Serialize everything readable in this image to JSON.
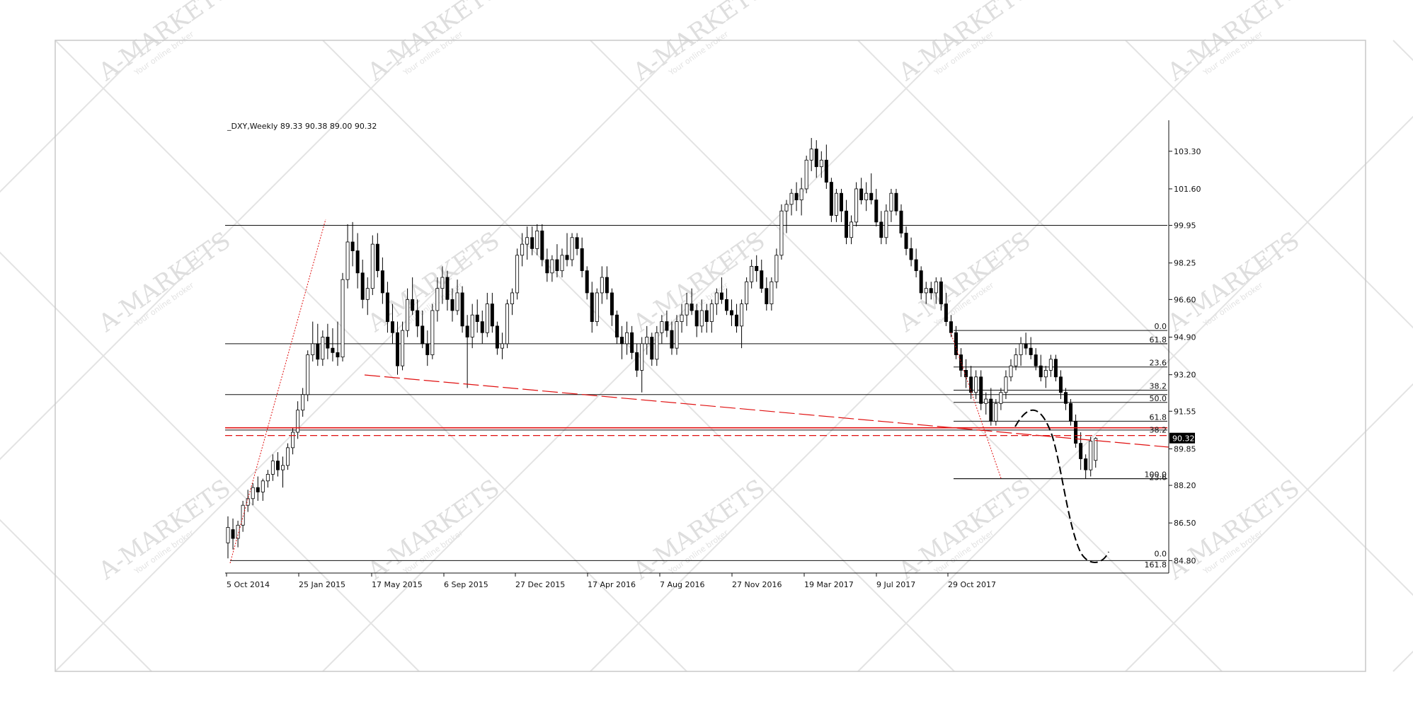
{
  "watermark": {
    "brand": "A-MARKETS",
    "tagline": "Your online broker"
  },
  "chart_data": {
    "type": "candlestick",
    "title": "_DXY,Weekly  89.33 90.38 89.00 90.32",
    "x_tick_labels": [
      "5 Oct 2014",
      "25 Jan 2015",
      "17 May 2015",
      "6 Sep 2015",
      "27 Dec 2015",
      "17 Apr 2016",
      "7 Aug 2016",
      "27 Nov 2016",
      "19 Mar 2017",
      "9 Jul 2017",
      "29 Oct 2017"
    ],
    "y_tick_labels": [
      103.3,
      101.6,
      99.95,
      98.25,
      96.6,
      94.9,
      93.2,
      91.55,
      89.85,
      88.2,
      86.5,
      84.8
    ],
    "ylim": [
      84.3,
      104.7
    ],
    "current_price": "90.32",
    "ohlc": [
      [
        85.6,
        86.8,
        84.9,
        86.3
      ],
      [
        86.2,
        86.7,
        85.3,
        85.8
      ],
      [
        85.8,
        86.6,
        85.4,
        86.4
      ],
      [
        86.4,
        87.5,
        86.1,
        87.3
      ],
      [
        87.3,
        88.0,
        87.0,
        87.6
      ],
      [
        87.6,
        88.3,
        87.3,
        88.1
      ],
      [
        88.1,
        88.6,
        87.5,
        87.9
      ],
      [
        87.9,
        88.5,
        87.5,
        88.4
      ],
      [
        88.4,
        88.9,
        88.1,
        88.7
      ],
      [
        88.7,
        89.6,
        88.4,
        89.3
      ],
      [
        89.3,
        89.7,
        88.6,
        88.9
      ],
      [
        88.9,
        89.5,
        88.1,
        89.1
      ],
      [
        89.1,
        90.1,
        88.9,
        89.9
      ],
      [
        89.9,
        90.8,
        89.6,
        90.6
      ],
      [
        90.6,
        92.0,
        90.3,
        91.6
      ],
      [
        91.6,
        92.6,
        91.3,
        92.3
      ],
      [
        92.3,
        94.3,
        92.0,
        94.1
      ],
      [
        94.1,
        95.6,
        93.8,
        94.6
      ],
      [
        94.6,
        95.5,
        93.6,
        93.9
      ],
      [
        93.9,
        95.2,
        93.6,
        94.9
      ],
      [
        94.9,
        95.5,
        93.9,
        94.4
      ],
      [
        94.4,
        95.3,
        93.8,
        94.2
      ],
      [
        94.2,
        95.6,
        93.6,
        94.0
      ],
      [
        94.0,
        97.8,
        93.8,
        97.5
      ],
      [
        97.5,
        100.0,
        97.1,
        99.2
      ],
      [
        99.2,
        100.1,
        98.1,
        98.8
      ],
      [
        98.8,
        99.6,
        97.1,
        97.8
      ],
      [
        97.8,
        98.4,
        96.2,
        96.6
      ],
      [
        96.6,
        97.6,
        95.9,
        97.1
      ],
      [
        97.1,
        99.5,
        96.8,
        99.1
      ],
      [
        99.1,
        99.6,
        97.6,
        97.9
      ],
      [
        97.9,
        98.5,
        96.4,
        96.9
      ],
      [
        96.9,
        97.4,
        95.1,
        95.6
      ],
      [
        95.6,
        96.4,
        94.6,
        95.1
      ],
      [
        95.1,
        95.6,
        93.2,
        93.6
      ],
      [
        93.6,
        95.6,
        93.4,
        95.2
      ],
      [
        95.2,
        97.1,
        94.9,
        96.6
      ],
      [
        96.6,
        97.6,
        95.9,
        96.1
      ],
      [
        96.1,
        96.6,
        94.9,
        95.4
      ],
      [
        95.4,
        96.1,
        94.4,
        94.6
      ],
      [
        94.6,
        95.2,
        93.6,
        94.1
      ],
      [
        94.1,
        96.4,
        93.9,
        96.1
      ],
      [
        96.1,
        97.6,
        95.6,
        97.1
      ],
      [
        97.1,
        98.1,
        96.4,
        97.6
      ],
      [
        97.6,
        97.9,
        96.1,
        96.6
      ],
      [
        96.6,
        97.1,
        95.6,
        96.1
      ],
      [
        96.1,
        97.5,
        95.9,
        96.9
      ],
      [
        96.9,
        97.2,
        95.1,
        95.4
      ],
      [
        95.4,
        95.9,
        92.6,
        94.9
      ],
      [
        94.9,
        96.4,
        94.4,
        95.9
      ],
      [
        95.9,
        96.6,
        95.1,
        95.6
      ],
      [
        95.6,
        96.1,
        94.6,
        95.1
      ],
      [
        95.1,
        96.9,
        94.9,
        96.4
      ],
      [
        96.4,
        96.9,
        95.1,
        95.4
      ],
      [
        95.4,
        95.6,
        94.1,
        94.4
      ],
      [
        94.4,
        95.1,
        93.9,
        94.6
      ],
      [
        94.6,
        96.6,
        94.4,
        96.4
      ],
      [
        96.4,
        97.1,
        95.9,
        96.9
      ],
      [
        96.9,
        98.9,
        96.6,
        98.6
      ],
      [
        98.6,
        99.6,
        98.1,
        99.1
      ],
      [
        99.1,
        99.9,
        98.4,
        99.4
      ],
      [
        99.4,
        99.9,
        98.6,
        98.9
      ],
      [
        98.9,
        100.0,
        98.6,
        99.7
      ],
      [
        99.7,
        100.0,
        98.1,
        98.4
      ],
      [
        98.4,
        98.9,
        97.4,
        97.8
      ],
      [
        97.8,
        98.6,
        97.4,
        98.4
      ],
      [
        98.4,
        99.1,
        97.6,
        97.9
      ],
      [
        97.9,
        98.9,
        97.6,
        98.6
      ],
      [
        98.6,
        99.6,
        98.1,
        98.4
      ],
      [
        98.4,
        99.6,
        98.1,
        99.4
      ],
      [
        99.4,
        99.6,
        98.6,
        98.9
      ],
      [
        98.9,
        99.4,
        97.6,
        97.9
      ],
      [
        97.9,
        98.1,
        96.6,
        96.9
      ],
      [
        96.9,
        97.4,
        95.1,
        95.6
      ],
      [
        95.6,
        97.1,
        95.4,
        96.9
      ],
      [
        96.9,
        98.1,
        96.4,
        97.6
      ],
      [
        97.6,
        98.1,
        96.6,
        96.9
      ],
      [
        96.9,
        97.1,
        95.4,
        95.9
      ],
      [
        95.9,
        96.1,
        94.6,
        94.9
      ],
      [
        94.9,
        95.4,
        93.9,
        94.6
      ],
      [
        94.6,
        95.6,
        94.1,
        95.1
      ],
      [
        95.1,
        95.4,
        93.9,
        94.2
      ],
      [
        94.2,
        94.6,
        93.1,
        93.4
      ],
      [
        93.4,
        94.9,
        92.4,
        94.6
      ],
      [
        94.6,
        95.4,
        94.1,
        94.9
      ],
      [
        94.9,
        95.1,
        93.6,
        93.9
      ],
      [
        93.9,
        95.4,
        93.6,
        95.1
      ],
      [
        95.1,
        95.9,
        94.6,
        95.6
      ],
      [
        95.6,
        96.1,
        94.9,
        95.2
      ],
      [
        95.2,
        95.6,
        94.1,
        94.4
      ],
      [
        94.4,
        95.9,
        94.1,
        95.6
      ],
      [
        95.6,
        96.4,
        95.1,
        95.9
      ],
      [
        95.9,
        96.9,
        95.4,
        96.4
      ],
      [
        96.4,
        97.1,
        95.9,
        96.1
      ],
      [
        96.1,
        96.4,
        94.9,
        95.4
      ],
      [
        95.4,
        96.6,
        95.1,
        96.1
      ],
      [
        96.1,
        96.4,
        95.1,
        95.6
      ],
      [
        95.6,
        96.6,
        95.1,
        96.4
      ],
      [
        96.4,
        97.1,
        95.9,
        96.9
      ],
      [
        96.9,
        97.6,
        96.4,
        96.6
      ],
      [
        96.6,
        97.1,
        95.9,
        96.1
      ],
      [
        96.1,
        96.6,
        95.4,
        95.9
      ],
      [
        95.9,
        96.4,
        95.1,
        95.4
      ],
      [
        95.4,
        96.6,
        94.4,
        96.4
      ],
      [
        96.4,
        97.6,
        96.1,
        97.4
      ],
      [
        97.4,
        98.4,
        97.1,
        98.1
      ],
      [
        98.1,
        98.6,
        97.4,
        97.9
      ],
      [
        97.9,
        98.4,
        96.9,
        97.1
      ],
      [
        97.1,
        97.6,
        96.1,
        96.4
      ],
      [
        96.4,
        97.6,
        96.1,
        97.4
      ],
      [
        97.4,
        98.9,
        97.1,
        98.6
      ],
      [
        98.6,
        100.9,
        98.4,
        100.6
      ],
      [
        100.6,
        101.1,
        99.6,
        100.9
      ],
      [
        100.9,
        101.6,
        100.4,
        101.4
      ],
      [
        101.4,
        101.9,
        100.6,
        101.1
      ],
      [
        101.1,
        102.1,
        100.4,
        101.6
      ],
      [
        101.6,
        103.1,
        101.4,
        102.9
      ],
      [
        102.9,
        103.9,
        102.4,
        103.4
      ],
      [
        103.4,
        103.8,
        102.1,
        102.6
      ],
      [
        102.6,
        103.3,
        102.1,
        102.9
      ],
      [
        102.9,
        103.6,
        101.6,
        101.9
      ],
      [
        101.9,
        102.1,
        100.1,
        100.4
      ],
      [
        100.4,
        101.6,
        100.1,
        101.4
      ],
      [
        101.4,
        101.6,
        100.1,
        100.6
      ],
      [
        100.6,
        101.1,
        99.1,
        99.4
      ],
      [
        99.4,
        100.4,
        99.1,
        100.1
      ],
      [
        100.1,
        101.9,
        99.9,
        101.6
      ],
      [
        101.6,
        102.1,
        100.9,
        101.1
      ],
      [
        101.1,
        101.9,
        100.6,
        101.4
      ],
      [
        101.4,
        102.3,
        100.9,
        101.1
      ],
      [
        101.1,
        101.6,
        99.9,
        100.1
      ],
      [
        100.1,
        100.6,
        99.1,
        99.4
      ],
      [
        99.4,
        100.9,
        99.1,
        100.6
      ],
      [
        100.6,
        101.6,
        100.1,
        101.4
      ],
      [
        101.4,
        101.6,
        100.4,
        100.6
      ],
      [
        100.6,
        100.9,
        99.4,
        99.6
      ],
      [
        99.6,
        99.9,
        98.6,
        98.9
      ],
      [
        98.9,
        99.4,
        98.1,
        98.4
      ],
      [
        98.4,
        98.9,
        97.6,
        97.9
      ],
      [
        97.9,
        98.1,
        96.6,
        96.9
      ],
      [
        96.9,
        97.4,
        96.4,
        97.1
      ],
      [
        97.1,
        97.4,
        96.6,
        96.9
      ],
      [
        96.9,
        97.6,
        96.4,
        97.4
      ],
      [
        97.4,
        97.6,
        96.1,
        96.4
      ],
      [
        96.4,
        96.9,
        95.4,
        95.6
      ],
      [
        95.6,
        95.9,
        94.9,
        95.1
      ],
      [
        95.1,
        95.4,
        93.9,
        94.1
      ],
      [
        94.1,
        94.4,
        93.1,
        93.4
      ],
      [
        93.4,
        93.9,
        92.6,
        93.1
      ],
      [
        93.1,
        93.6,
        92.1,
        92.4
      ],
      [
        92.4,
        93.4,
        92.1,
        93.1
      ],
      [
        93.1,
        93.4,
        91.6,
        91.9
      ],
      [
        91.9,
        92.4,
        91.4,
        92.1
      ],
      [
        92.1,
        92.6,
        90.9,
        91.1
      ],
      [
        91.1,
        92.1,
        90.9,
        91.9
      ],
      [
        91.9,
        92.6,
        91.6,
        92.4
      ],
      [
        92.4,
        93.4,
        92.1,
        93.1
      ],
      [
        93.1,
        93.9,
        92.9,
        93.6
      ],
      [
        93.6,
        94.4,
        93.4,
        94.1
      ],
      [
        94.1,
        94.9,
        93.6,
        94.6
      ],
      [
        94.6,
        95.1,
        94.1,
        94.4
      ],
      [
        94.4,
        94.9,
        93.9,
        94.1
      ],
      [
        94.1,
        94.4,
        93.4,
        93.6
      ],
      [
        93.6,
        94.1,
        92.9,
        93.1
      ],
      [
        93.1,
        93.6,
        92.6,
        93.4
      ],
      [
        93.4,
        94.1,
        93.1,
        93.9
      ],
      [
        93.9,
        94.1,
        92.9,
        93.1
      ],
      [
        93.1,
        93.4,
        92.1,
        92.4
      ],
      [
        92.4,
        92.6,
        91.6,
        91.9
      ],
      [
        91.9,
        92.1,
        90.9,
        91.1
      ],
      [
        91.1,
        91.4,
        89.9,
        90.1
      ],
      [
        90.1,
        90.6,
        88.9,
        89.4
      ],
      [
        89.4,
        89.6,
        88.5,
        88.9
      ],
      [
        88.9,
        90.4,
        88.6,
        90.2
      ],
      [
        89.33,
        90.38,
        89.0,
        90.32
      ]
    ],
    "price_levels": [
      99.95,
      94.6,
      92.3,
      90.7,
      88.5,
      84.8
    ],
    "fib_upper": {
      "labels": [
        "0.0",
        "61.8",
        "23.6",
        "38.2",
        "50.0",
        "61.8",
        "100.0"
      ],
      "values": [
        95.2,
        94.6,
        93.55,
        92.5,
        91.95,
        91.1,
        88.5
      ]
    },
    "fib_lower": {
      "labels": [
        "38.2",
        "23.6",
        "0.0",
        "161.8"
      ],
      "values": [
        90.65,
        88.5,
        85.05,
        84.55
      ]
    },
    "red_levels": {
      "solid": 90.8,
      "dashed": 90.45
    }
  }
}
